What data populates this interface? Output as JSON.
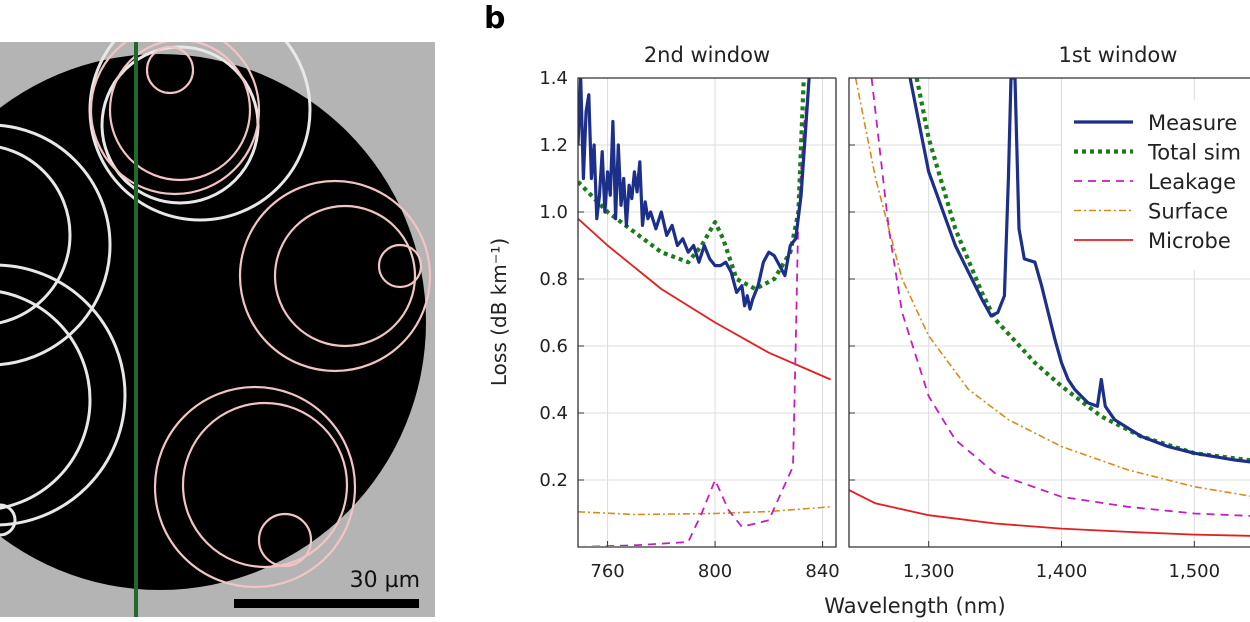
{
  "panel_a": {
    "scale_bar_label": "30 µm",
    "colors": {
      "background": "#b4b4b4",
      "core": "#000000",
      "divider": "#1e6a2a",
      "overlay_rings": "#f0c0c0",
      "rings": "#e8e8e8"
    }
  },
  "panel_b": {
    "label": "b",
    "xlabel": "Wavelength (nm)",
    "ylabel": "Loss (dB km⁻¹)",
    "legend": {
      "placement": "top-right",
      "entries": [
        {
          "text": "Measure",
          "style": "solid-thick",
          "color": "#1c2f8a"
        },
        {
          "text": "Total sim",
          "style": "dotted",
          "color": "#1a7d1a"
        },
        {
          "text": "Leakage",
          "style": "dashed",
          "color": "#c41cc4"
        },
        {
          "text": "Surface",
          "style": "dash-dot",
          "color": "#d98c1c"
        },
        {
          "text": "Microbe",
          "style": "solid-thin",
          "color": "#e41e1e"
        }
      ]
    }
  },
  "chart_data": [
    {
      "type": "line",
      "title": "2nd window",
      "xlim": [
        749,
        845
      ],
      "ylim": [
        0,
        1.4
      ],
      "grid": true,
      "xticks": [
        {
          "v": 760,
          "label": "760"
        },
        {
          "v": 800,
          "label": "800"
        },
        {
          "v": 840,
          "label": "840"
        }
      ],
      "yticks": [
        {
          "v": 0.2,
          "label": "0.2"
        },
        {
          "v": 0.4,
          "label": "0.4"
        },
        {
          "v": 0.6,
          "label": "0.6"
        },
        {
          "v": 0.8,
          "label": "0.8"
        },
        {
          "v": 1.0,
          "label": "1.0"
        },
        {
          "v": 1.2,
          "label": "1.2"
        },
        {
          "v": 1.4,
          "label": "1.4"
        }
      ],
      "series": [
        {
          "key": "measured",
          "x": [
            749,
            750,
            751,
            752,
            753,
            754,
            755,
            756,
            757,
            758,
            759,
            760,
            761,
            762,
            763,
            764,
            765,
            766,
            767,
            768,
            769,
            770,
            771,
            772,
            773,
            774,
            775,
            776,
            778,
            780,
            782,
            784,
            786,
            788,
            790,
            792,
            794,
            796,
            798,
            800,
            802,
            804,
            806,
            808,
            810,
            811,
            812,
            813,
            814,
            816,
            818,
            820,
            822,
            824,
            826,
            828,
            830,
            832,
            834,
            835
          ],
          "y": [
            1.2,
            1.4,
            1.1,
            1.3,
            1.35,
            1.1,
            1.2,
            0.98,
            1.05,
            1.18,
            1.0,
            1.12,
            1.05,
            1.27,
            0.98,
            1.2,
            1.02,
            1.1,
            0.96,
            1.08,
            1.04,
            1.12,
            1.06,
            1.15,
            0.96,
            1.03,
            0.98,
            1.0,
            0.95,
            1.0,
            0.93,
            0.96,
            0.9,
            0.92,
            0.88,
            0.9,
            0.85,
            0.9,
            0.86,
            0.84,
            0.84,
            0.85,
            0.82,
            0.76,
            0.78,
            0.72,
            0.75,
            0.71,
            0.74,
            0.78,
            0.85,
            0.88,
            0.87,
            0.84,
            0.81,
            0.9,
            0.92,
            1.05,
            1.28,
            1.4
          ]
        },
        {
          "key": "total",
          "x": [
            749,
            760,
            770,
            780,
            790,
            795,
            800,
            803,
            808,
            815,
            822,
            828,
            831,
            833
          ],
          "y": [
            1.09,
            1.0,
            0.94,
            0.88,
            0.85,
            0.9,
            0.97,
            0.92,
            0.8,
            0.77,
            0.8,
            0.88,
            1.0,
            1.4
          ]
        },
        {
          "key": "leakage",
          "x": [
            749,
            770,
            790,
            795,
            800,
            805,
            810,
            820,
            829,
            830,
            831,
            833,
            835
          ],
          "y": [
            0.0,
            0.005,
            0.015,
            0.1,
            0.2,
            0.11,
            0.06,
            0.08,
            0.24,
            0.6,
            1.0,
            1.25,
            1.4
          ]
        },
        {
          "key": "surface",
          "x": [
            749,
            770,
            800,
            820,
            843
          ],
          "y": [
            0.105,
            0.097,
            0.1,
            0.106,
            0.12
          ]
        },
        {
          "key": "microbending",
          "x": [
            749,
            760,
            780,
            800,
            820,
            843
          ],
          "y": [
            0.98,
            0.9,
            0.77,
            0.67,
            0.58,
            0.5
          ]
        }
      ]
    },
    {
      "type": "line",
      "title": "1st window",
      "xlim": [
        1240,
        1560
      ],
      "ylim": [
        0,
        1.4
      ],
      "grid": true,
      "xticks": [
        {
          "v": 1300,
          "label": "1,300"
        },
        {
          "v": 1400,
          "label": "1,400"
        },
        {
          "v": 1500,
          "label": "1,500"
        }
      ],
      "yticks": [
        {
          "v": 0.2,
          "label": ""
        },
        {
          "v": 0.4,
          "label": ""
        },
        {
          "v": 0.6,
          "label": ""
        },
        {
          "v": 0.8,
          "label": ""
        },
        {
          "v": 1.0,
          "label": ""
        },
        {
          "v": 1.2,
          "label": ""
        },
        {
          "v": 1.4,
          "label": ""
        }
      ],
      "series": [
        {
          "key": "measured",
          "x": [
            1286,
            1300,
            1320,
            1340,
            1347,
            1352,
            1357,
            1360,
            1362,
            1365,
            1368,
            1372,
            1380,
            1385,
            1390,
            1395,
            1400,
            1405,
            1410,
            1415,
            1420,
            1427,
            1430,
            1433,
            1440,
            1460,
            1480,
            1500,
            1530,
            1560
          ],
          "y": [
            1.4,
            1.12,
            0.9,
            0.74,
            0.69,
            0.7,
            0.75,
            1.1,
            1.4,
            1.4,
            0.95,
            0.86,
            0.85,
            0.78,
            0.7,
            0.62,
            0.55,
            0.5,
            0.47,
            0.45,
            0.43,
            0.42,
            0.5,
            0.42,
            0.38,
            0.33,
            0.3,
            0.28,
            0.26,
            0.245
          ]
        },
        {
          "key": "total",
          "x": [
            1291,
            1300,
            1320,
            1340,
            1350,
            1380,
            1400,
            1430,
            1460,
            1500,
            1560
          ],
          "y": [
            1.4,
            1.22,
            0.95,
            0.76,
            0.68,
            0.55,
            0.48,
            0.39,
            0.33,
            0.28,
            0.25
          ]
        },
        {
          "key": "leakage",
          "x": [
            1257,
            1270,
            1280,
            1300,
            1320,
            1350,
            1400,
            1450,
            1500,
            1560
          ],
          "y": [
            1.4,
            0.95,
            0.7,
            0.45,
            0.32,
            0.22,
            0.15,
            0.12,
            0.1,
            0.09
          ]
        },
        {
          "key": "surface",
          "x": [
            1245,
            1260,
            1280,
            1300,
            1330,
            1360,
            1400,
            1450,
            1500,
            1560
          ],
          "y": [
            1.4,
            1.1,
            0.8,
            0.63,
            0.47,
            0.38,
            0.3,
            0.23,
            0.18,
            0.14
          ]
        },
        {
          "key": "microbending",
          "x": [
            1240,
            1260,
            1300,
            1350,
            1400,
            1450,
            1500,
            1560
          ],
          "y": [
            0.17,
            0.13,
            0.095,
            0.07,
            0.055,
            0.045,
            0.037,
            0.032
          ]
        }
      ]
    }
  ]
}
